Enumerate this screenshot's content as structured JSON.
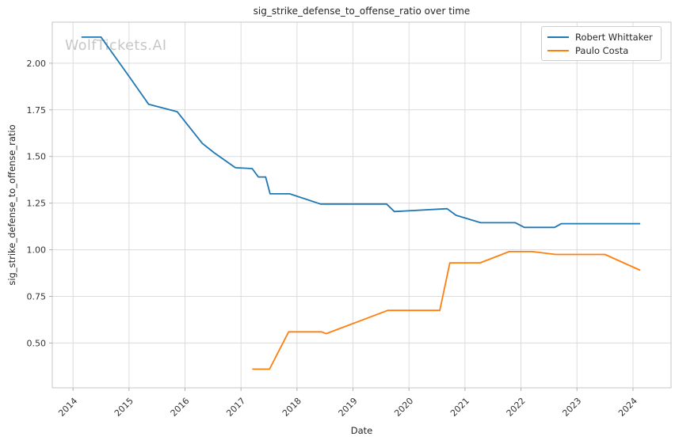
{
  "watermark": "WolfTickets.AI",
  "chart_data": {
    "type": "line",
    "title": "sig_strike_defense_to_offense_ratio over time",
    "xlabel": "Date",
    "ylabel": "sig_strike_defense_to_offense_ratio",
    "x_ticks": [
      2014,
      2015,
      2016,
      2017,
      2018,
      2019,
      2020,
      2021,
      2022,
      2023,
      2024
    ],
    "y_ticks": [
      0.5,
      0.75,
      1.0,
      1.25,
      1.5,
      1.75,
      2.0
    ],
    "xlim": [
      2013.63,
      2024.68
    ],
    "ylim": [
      0.26,
      2.22
    ],
    "grid": true,
    "legend_position": "upper right",
    "colors": {
      "grid": "#dcdcdc",
      "spine": "#c6c6c6",
      "tick": "#b0b0b0",
      "text": "#333333",
      "watermark": "#c6c6c6"
    },
    "series": [
      {
        "name": "Robert Whittaker",
        "color": "#1f77b4",
        "points": [
          [
            2014.15,
            2.14
          ],
          [
            2014.5,
            2.14
          ],
          [
            2015.0,
            1.93
          ],
          [
            2015.35,
            1.78
          ],
          [
            2015.86,
            1.74
          ],
          [
            2016.31,
            1.57
          ],
          [
            2016.52,
            1.52
          ],
          [
            2016.9,
            1.44
          ],
          [
            2017.2,
            1.435
          ],
          [
            2017.31,
            1.39
          ],
          [
            2017.44,
            1.39
          ],
          [
            2017.52,
            1.3
          ],
          [
            2017.87,
            1.3
          ],
          [
            2018.42,
            1.245
          ],
          [
            2019.6,
            1.245
          ],
          [
            2019.74,
            1.205
          ],
          [
            2020.68,
            1.22
          ],
          [
            2020.84,
            1.185
          ],
          [
            2021.28,
            1.145
          ],
          [
            2021.9,
            1.145
          ],
          [
            2022.06,
            1.12
          ],
          [
            2022.6,
            1.12
          ],
          [
            2022.72,
            1.14
          ],
          [
            2024.13,
            1.14
          ]
        ]
      },
      {
        "name": "Paulo Costa",
        "color": "#ff7f0e",
        "points": [
          [
            2017.2,
            0.36
          ],
          [
            2017.51,
            0.36
          ],
          [
            2017.85,
            0.56
          ],
          [
            2018.44,
            0.56
          ],
          [
            2018.52,
            0.55
          ],
          [
            2019.62,
            0.675
          ],
          [
            2020.55,
            0.675
          ],
          [
            2020.73,
            0.93
          ],
          [
            2021.27,
            0.93
          ],
          [
            2021.79,
            0.99
          ],
          [
            2022.2,
            0.99
          ],
          [
            2022.62,
            0.975
          ],
          [
            2023.5,
            0.975
          ],
          [
            2024.13,
            0.89
          ]
        ]
      }
    ]
  }
}
